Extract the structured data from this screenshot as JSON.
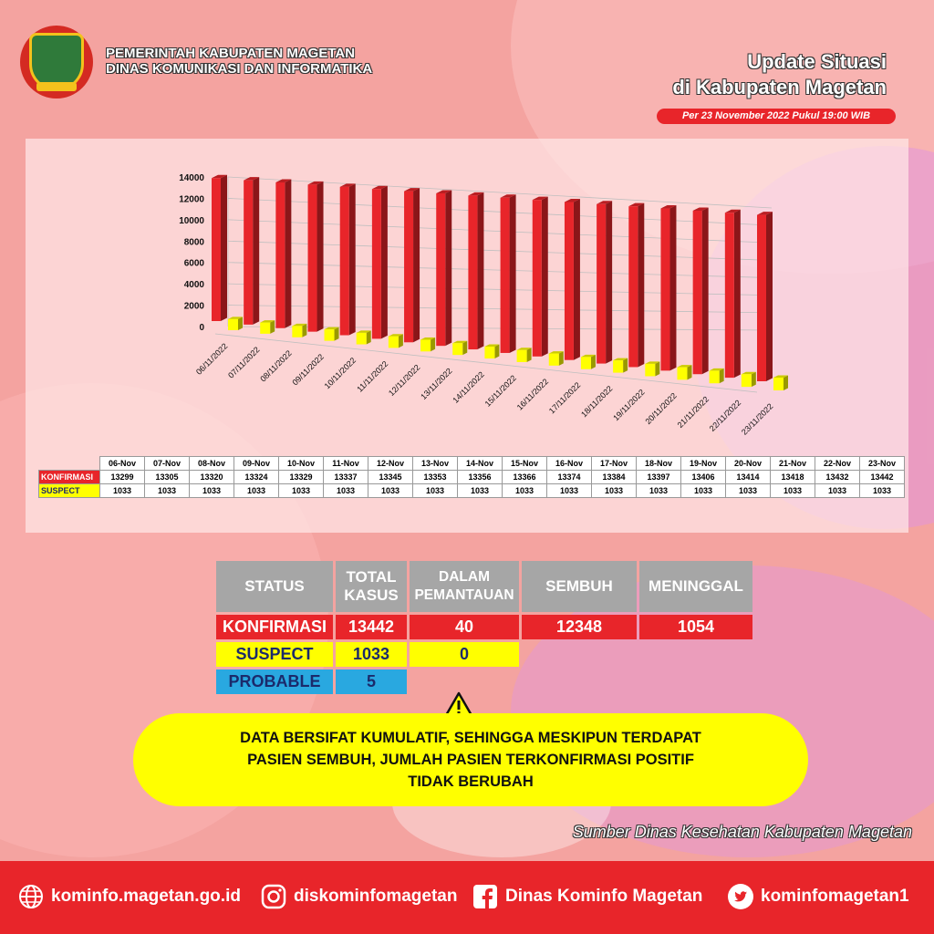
{
  "header": {
    "org_line1": "PEMERINTAH KABUPATEN MAGETAN",
    "org_line2": "DINAS KOMUNIKASI DAN INFORMATIKA",
    "update_line1": "Update Situasi",
    "update_line2": "di Kabupaten Magetan",
    "as_of": "Per 23 November 2022 Pukul 19:00 WIB"
  },
  "colors": {
    "konfirmasi": "#e8252a",
    "suspect": "#ffff00",
    "probable": "#29a8e0",
    "header_gray": "#a6a6a6"
  },
  "chart_data": {
    "type": "bar",
    "categories": [
      "06/11/2022",
      "07/11/2022",
      "08/11/2022",
      "09/11/2022",
      "10/11/2022",
      "11/11/2022",
      "12/11/2022",
      "13/11/2022",
      "14/11/2022",
      "15/11/2022",
      "16/11/2022",
      "17/11/2022",
      "18/11/2022",
      "19/11/2022",
      "20/11/2022",
      "21/11/2022",
      "22/11/2022",
      "23/11/2022"
    ],
    "series": [
      {
        "name": "KONFIRMASI",
        "color": "#e8252a",
        "values": [
          13299,
          13305,
          13320,
          13324,
          13329,
          13337,
          13345,
          13353,
          13356,
          13366,
          13374,
          13384,
          13397,
          13406,
          13414,
          13418,
          13432,
          13442
        ]
      },
      {
        "name": "SUSPECT",
        "color": "#ffff00",
        "values": [
          1033,
          1033,
          1033,
          1033,
          1033,
          1033,
          1033,
          1033,
          1033,
          1033,
          1033,
          1033,
          1033,
          1033,
          1033,
          1033,
          1033,
          1033
        ]
      }
    ],
    "yticks": [
      "0",
      "2000",
      "4000",
      "6000",
      "8000",
      "10000",
      "12000",
      "14000"
    ],
    "ylim": [
      0,
      14000
    ],
    "grid": true,
    "style": "3d-perspective"
  },
  "daily_table": {
    "headers": [
      "06-Nov",
      "07-Nov",
      "08-Nov",
      "09-Nov",
      "10-Nov",
      "11-Nov",
      "12-Nov",
      "13-Nov",
      "14-Nov",
      "15-Nov",
      "16-Nov",
      "17-Nov",
      "18-Nov",
      "19-Nov",
      "20-Nov",
      "21-Nov",
      "22-Nov",
      "23-Nov"
    ],
    "rows": [
      {
        "label": "KONFIRMASI",
        "values": [
          "13299",
          "13305",
          "13320",
          "13324",
          "13329",
          "13337",
          "13345",
          "13353",
          "13356",
          "13366",
          "13374",
          "13384",
          "13397",
          "13406",
          "13414",
          "13418",
          "13432",
          "13442"
        ]
      },
      {
        "label": "SUSPECT",
        "values": [
          "1033",
          "1033",
          "1033",
          "1033",
          "1033",
          "1033",
          "1033",
          "1033",
          "1033",
          "1033",
          "1033",
          "1033",
          "1033",
          "1033",
          "1033",
          "1033",
          "1033",
          "1033"
        ]
      }
    ]
  },
  "summary": {
    "headers": {
      "status": "STATUS",
      "total_1": "TOTAL",
      "total_2": "KASUS",
      "dalam_1": "DALAM",
      "dalam_2": "PEMANTAUAN",
      "sembuh": "SEMBUH",
      "meninggal": "MENINGGAL"
    },
    "konfirmasi": {
      "label": "KONFIRMASI",
      "total": "13442",
      "dalam": "40",
      "sembuh": "12348",
      "meninggal": "1054"
    },
    "suspect": {
      "label": "SUSPECT",
      "total": "1033",
      "dalam": "0"
    },
    "probable": {
      "label": "PROBABLE",
      "total": "5"
    }
  },
  "note": {
    "line1": "DATA BERSIFAT KUMULATIF, SEHINGGA MESKIPUN TERDAPAT",
    "line2": "PASIEN SEMBUH, JUMLAH PASIEN TERKONFIRMASI POSITIF",
    "line3": "TIDAK BERUBAH",
    "icon": "warning-icon"
  },
  "source": "Sumber Dinas Kesehatan Kabupaten Magetan",
  "footer": {
    "website": "kominfo.magetan.go.id",
    "instagram": "diskominfomagetan",
    "facebook": "Dinas Kominfo Magetan",
    "twitter": "kominfomagetan1"
  }
}
